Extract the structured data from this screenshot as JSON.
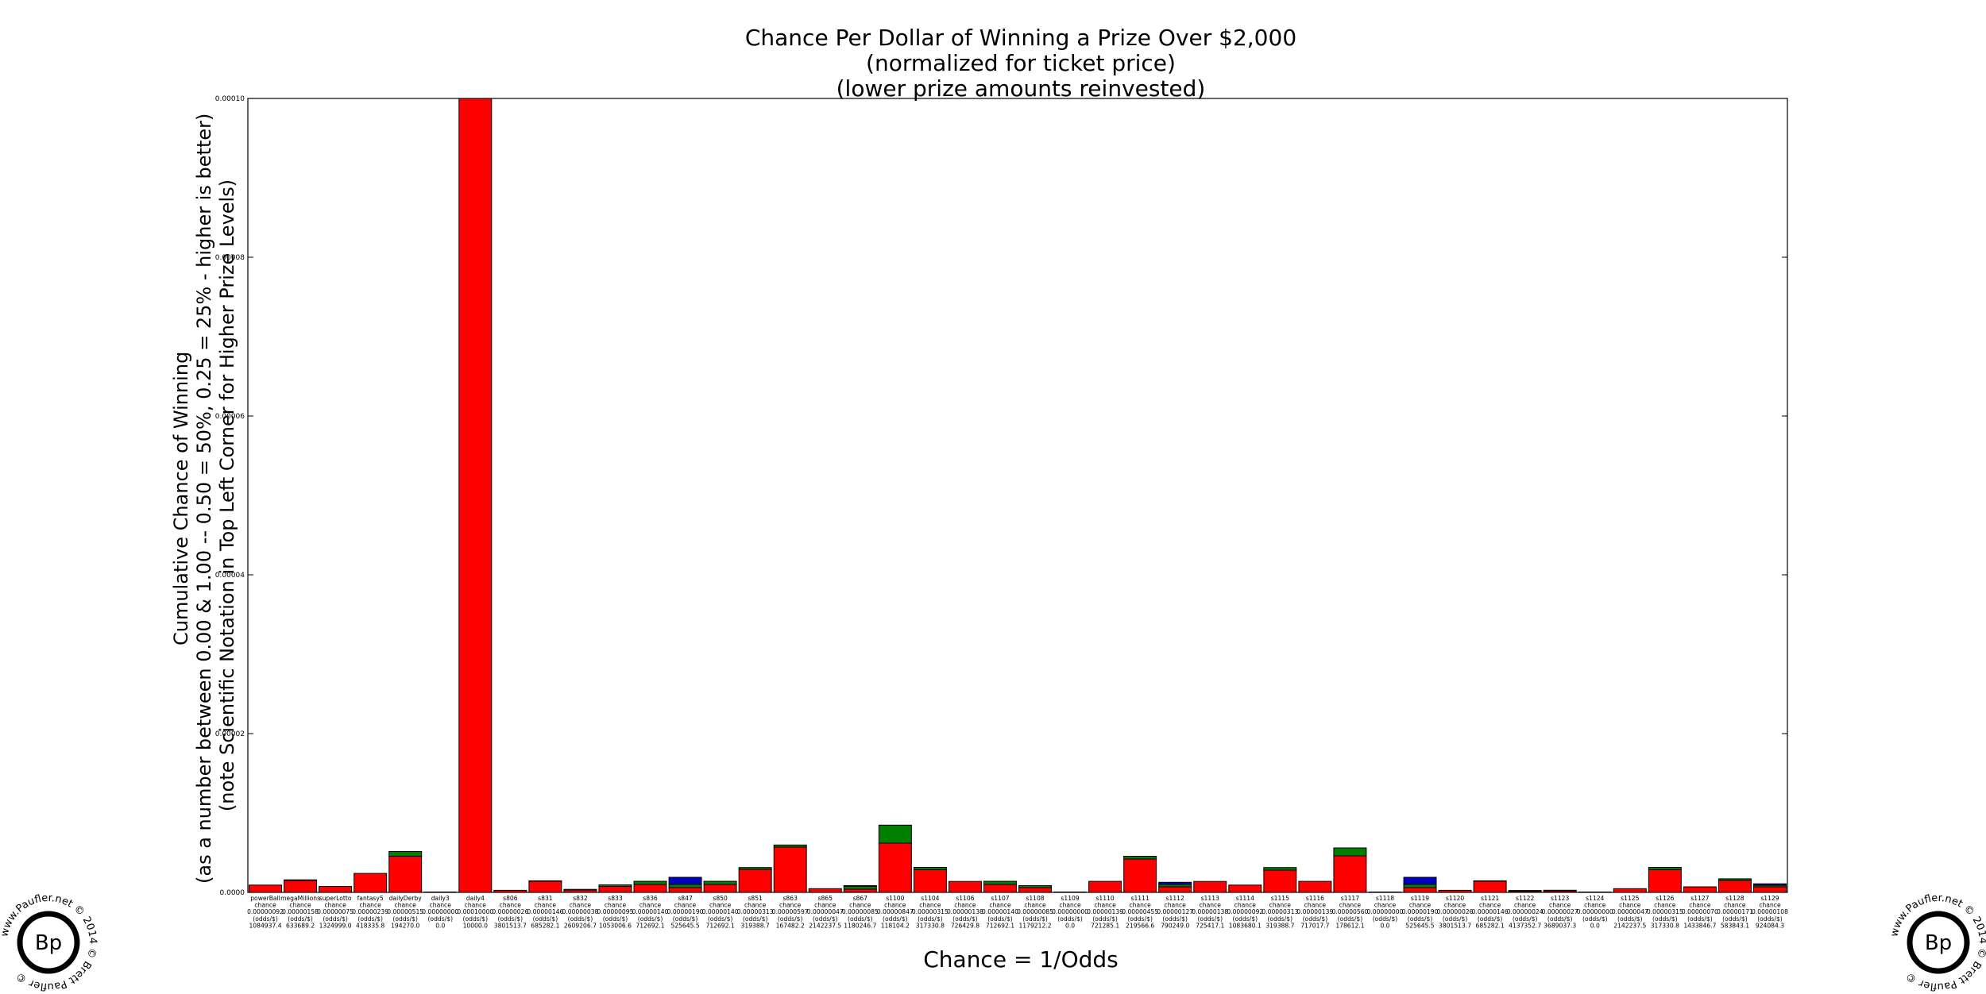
{
  "chart_data": {
    "type": "bar",
    "stacked": true,
    "title": [
      "Chance Per Dollar of Winning a Prize Over $2,000",
      "(normalized for ticket price)",
      "(lower prize amounts reinvested)"
    ],
    "xlabel": "Chance = 1/Odds",
    "ylabel": [
      "Cumulative Chance of Winning",
      "(as a number between 0.00 & 1.00 -- 0.50 = 50%, 0.25 = 25% - higher is better)",
      "(note Scientific Notation in Top Left Corner for Higher Prize Levels)"
    ],
    "ylim": [
      0,
      0.0001
    ],
    "yticks": [
      "0.0000",
      "0.00002",
      "0.00004",
      "0.00006",
      "0.00008",
      "0.00010"
    ],
    "grid": false,
    "series_colors": {
      "red": "#ff0000",
      "green": "#008000",
      "blue": "#0000bf"
    },
    "categories": [
      {
        "name": "powerBall",
        "chance": "0.00000092",
        "odds": "1084937.4",
        "red": 9.2e-07,
        "green": 0,
        "blue": 0
      },
      {
        "name": "megaMillions",
        "chance": "0.00000158",
        "odds": "633689.2",
        "red": 1.5e-06,
        "green": 8e-08,
        "blue": 0
      },
      {
        "name": "superLotto",
        "chance": "0.00000075",
        "odds": "1324999.0",
        "red": 7.5e-07,
        "green": 0,
        "blue": 0
      },
      {
        "name": "fantasy5",
        "chance": "0.00000239",
        "odds": "418335.8",
        "red": 2.39e-06,
        "green": 0,
        "blue": 0
      },
      {
        "name": "dailyDerby",
        "chance": "0.00000515",
        "odds": "194270.0",
        "red": 4.55e-06,
        "green": 6e-07,
        "blue": 0
      },
      {
        "name": "daily3",
        "chance": "0.00000000",
        "odds": "0.0",
        "red": 0,
        "green": 0,
        "blue": 0
      },
      {
        "name": "daily4",
        "chance": "0.00010000",
        "odds": "10000.0",
        "red": 0.0001,
        "green": 0,
        "blue": 0
      },
      {
        "name": "s806",
        "chance": "0.00000026",
        "odds": "3801513.7",
        "red": 2.6e-07,
        "green": 0,
        "blue": 0
      },
      {
        "name": "s831",
        "chance": "0.00000146",
        "odds": "685282.1",
        "red": 1.4e-06,
        "green": 6e-08,
        "blue": 0
      },
      {
        "name": "s832",
        "chance": "0.00000038",
        "odds": "2609206.7",
        "red": 3e-07,
        "green": 8e-08,
        "blue": 0
      },
      {
        "name": "s833",
        "chance": "0.00000095",
        "odds": "1053006.6",
        "red": 7.5e-07,
        "green": 2e-07,
        "blue": 0
      },
      {
        "name": "s836",
        "chance": "0.00000140",
        "odds": "712692.1",
        "red": 1e-06,
        "green": 4e-07,
        "blue": 0
      },
      {
        "name": "s847",
        "chance": "0.00000190",
        "odds": "525645.5",
        "red": 6e-07,
        "green": 4e-07,
        "blue": 9e-07
      },
      {
        "name": "s850",
        "chance": "0.00000140",
        "odds": "712692.1",
        "red": 1e-06,
        "green": 4e-07,
        "blue": 0
      },
      {
        "name": "s851",
        "chance": "0.00000313",
        "odds": "319388.7",
        "red": 2.9e-06,
        "green": 2.3e-07,
        "blue": 0
      },
      {
        "name": "s863",
        "chance": "0.00000597",
        "odds": "167482.2",
        "red": 5.7e-06,
        "green": 2.7e-07,
        "blue": 0
      },
      {
        "name": "s865",
        "chance": "0.00000047",
        "odds": "2142237.5",
        "red": 4.7e-07,
        "green": 0,
        "blue": 0
      },
      {
        "name": "s867",
        "chance": "0.00000085",
        "odds": "1180246.7",
        "red": 4e-07,
        "green": 3.5e-07,
        "blue": 1e-07
      },
      {
        "name": "s1100",
        "chance": "0.00000847",
        "odds": "118104.2",
        "red": 6.2e-06,
        "green": 2.27e-06,
        "blue": 0
      },
      {
        "name": "s1104",
        "chance": "0.00000315",
        "odds": "317330.8",
        "red": 2.85e-06,
        "green": 3e-07,
        "blue": 0
      },
      {
        "name": "s1106",
        "chance": "0.00000138",
        "odds": "726429.8",
        "red": 1.38e-06,
        "green": 0,
        "blue": 0
      },
      {
        "name": "s1107",
        "chance": "0.00000140",
        "odds": "712692.1",
        "red": 1e-06,
        "green": 4e-07,
        "blue": 0
      },
      {
        "name": "s1108",
        "chance": "0.00000085",
        "odds": "1179212.2",
        "red": 6e-07,
        "green": 2.5e-07,
        "blue": 0
      },
      {
        "name": "s1109",
        "chance": "0.00000000",
        "odds": "0.0",
        "red": 0,
        "green": 0,
        "blue": 0
      },
      {
        "name": "s1110",
        "chance": "0.00000139",
        "odds": "721285.1",
        "red": 1.39e-06,
        "green": 0,
        "blue": 0
      },
      {
        "name": "s1111",
        "chance": "0.00000455",
        "odds": "219566.6",
        "red": 4.2e-06,
        "green": 3.5e-07,
        "blue": 0
      },
      {
        "name": "s1112",
        "chance": "0.00000127",
        "odds": "790249.0",
        "red": 7e-07,
        "green": 3e-07,
        "blue": 2.7e-07
      },
      {
        "name": "s1113",
        "chance": "0.00000138",
        "odds": "725417.1",
        "red": 1.38e-06,
        "green": 0,
        "blue": 0
      },
      {
        "name": "s1114",
        "chance": "0.00000092",
        "odds": "1083680.1",
        "red": 9.2e-07,
        "green": 0,
        "blue": 0
      },
      {
        "name": "s1115",
        "chance": "0.00000313",
        "odds": "319388.7",
        "red": 2.8e-06,
        "green": 3.3e-07,
        "blue": 0
      },
      {
        "name": "s1116",
        "chance": "0.00000139",
        "odds": "717017.7",
        "red": 1.39e-06,
        "green": 0,
        "blue": 0
      },
      {
        "name": "s1117",
        "chance": "0.00000560",
        "odds": "178612.1",
        "red": 4.6e-06,
        "green": 1e-06,
        "blue": 0
      },
      {
        "name": "s1118",
        "chance": "0.00000000",
        "odds": "0.0",
        "red": 0,
        "green": 0,
        "blue": 0
      },
      {
        "name": "s1119",
        "chance": "0.00000190",
        "odds": "525645.5",
        "red": 6e-07,
        "green": 4e-07,
        "blue": 9e-07
      },
      {
        "name": "s1120",
        "chance": "0.00000026",
        "odds": "3801513.7",
        "red": 2.6e-07,
        "green": 0,
        "blue": 0
      },
      {
        "name": "s1121",
        "chance": "0.00000146",
        "odds": "685282.1",
        "red": 1.4e-06,
        "green": 6e-08,
        "blue": 0
      },
      {
        "name": "s1122",
        "chance": "0.00000024",
        "odds": "4137352.7",
        "red": 1.6e-07,
        "green": 8e-08,
        "blue": 0
      },
      {
        "name": "s1123",
        "chance": "0.00000027",
        "odds": "3689037.3",
        "red": 1.9e-07,
        "green": 8e-08,
        "blue": 0
      },
      {
        "name": "s1124",
        "chance": "0.00000000",
        "odds": "0.0",
        "red": 0,
        "green": 0,
        "blue": 0
      },
      {
        "name": "s1125",
        "chance": "0.00000047",
        "odds": "2142237.5",
        "red": 4.7e-07,
        "green": 0,
        "blue": 0
      },
      {
        "name": "s1126",
        "chance": "0.00000315",
        "odds": "317330.8",
        "red": 2.85e-06,
        "green": 3e-07,
        "blue": 0
      },
      {
        "name": "s1127",
        "chance": "0.00000070",
        "odds": "1433846.7",
        "red": 7e-07,
        "green": 0,
        "blue": 0
      },
      {
        "name": "s1128",
        "chance": "0.00000171",
        "odds": "583843.1",
        "red": 1.5e-06,
        "green": 2.1e-07,
        "blue": 0
      },
      {
        "name": "s1129",
        "chance": "0.00000108",
        "odds": "924084.3",
        "red": 7e-07,
        "green": 2e-07,
        "blue": 1.8e-07
      }
    ],
    "tick_label_template": {
      "line2": "chance",
      "line4": "(odds/$)"
    }
  },
  "watermark": {
    "monogram": "Bp",
    "ring_text": "www.Paufler.net © 2014 © Brett Paufler ©"
  }
}
